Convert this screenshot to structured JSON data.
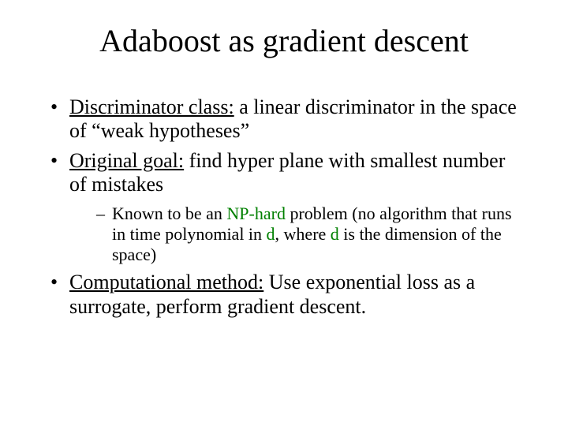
{
  "colors": {
    "background": "#ffffff",
    "text": "#000000",
    "np_hard": "#008000"
  },
  "typography": {
    "font_family": "Times New Roman",
    "title_fontsize": 40,
    "bullet_fontsize": 26,
    "subbullet_fontsize": 22
  },
  "title": "Adaboost as gradient descent",
  "bullets": [
    {
      "label": "Discriminator class:",
      "rest": " a linear discriminator in the space of “weak hypotheses”"
    },
    {
      "label": "Original goal:",
      "rest": "  find hyper plane with smallest number of mistakes",
      "sub": {
        "pre": "Known to be an ",
        "np": "NP-hard",
        "mid": " problem (no algorithm that runs in time polynomial in ",
        "d1": "d",
        "mid2": ", where ",
        "d2": "d",
        "post": " is the dimension of the space)"
      }
    },
    {
      "label": "Computational method:",
      "rest": " Use exponential loss as a surrogate, perform gradient descent."
    }
  ]
}
